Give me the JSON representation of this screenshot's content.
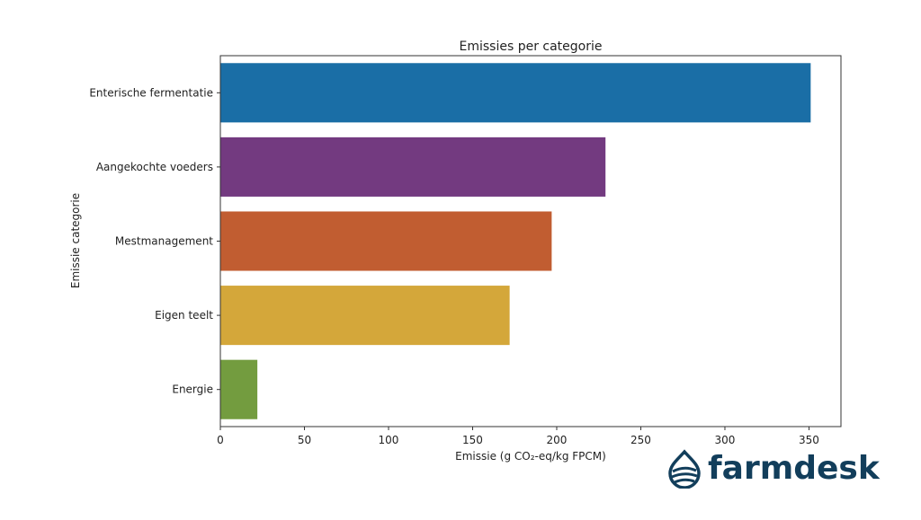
{
  "chart_data": {
    "type": "bar",
    "orientation": "horizontal",
    "title": "Emissies per categorie",
    "xlabel": "Emissie (g CO₂-eq/kg FPCM)",
    "ylabel": "Emissie categorie",
    "categories": [
      "Enterische fermentatie",
      "Aangekochte voeders",
      "Mestmanagement",
      "Eigen teelt",
      "Energie"
    ],
    "values": [
      351,
      229,
      197,
      172,
      22
    ],
    "colors": [
      "#1a6ea6",
      "#733a80",
      "#c15d31",
      "#d4a73a",
      "#739c3f"
    ],
    "xlim": [
      0,
      369
    ],
    "xticks": [
      0,
      50,
      100,
      150,
      200,
      250,
      300,
      350
    ],
    "grid": false
  },
  "logo": {
    "text": "farmdesk",
    "color": "#123e5b"
  }
}
